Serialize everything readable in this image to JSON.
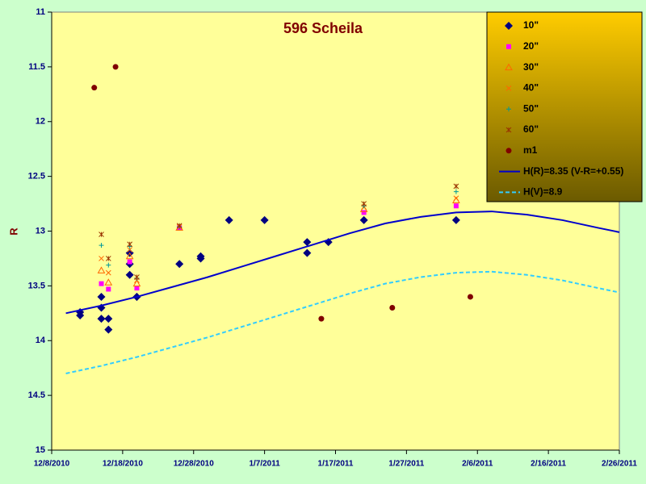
{
  "chart_data": {
    "type": "scatter",
    "title": "596 Scheila",
    "y_label": "R",
    "ylim": [
      11,
      15
    ],
    "y_reversed": true,
    "yticks": [
      11,
      11.5,
      12,
      12.5,
      13,
      13.5,
      14,
      14.5,
      15
    ],
    "xlim": [
      "12/8/2010",
      "2/26/2011"
    ],
    "xticks": [
      "12/8/2010",
      "12/18/2010",
      "12/28/2010",
      "1/7/2011",
      "1/17/2011",
      "1/27/2011",
      "2/6/2011",
      "2/16/2011",
      "2/26/2011"
    ],
    "legend": "top-right",
    "series": [
      {
        "name": "10\"",
        "color": "#000080",
        "marker": "diamond",
        "x": [
          "12/12/2010",
          "12/12/2010",
          "12/15/2010",
          "12/15/2010",
          "12/15/2010",
          "12/16/2010",
          "12/16/2010",
          "12/19/2010",
          "12/19/2010",
          "12/19/2010",
          "12/20/2010",
          "12/20/2010",
          "12/26/2010",
          "12/29/2010",
          "12/29/2010",
          "1/2/2011",
          "1/7/2011",
          "1/13/2011",
          "1/13/2011",
          "1/16/2011",
          "1/21/2011",
          "2/3/2011"
        ],
        "values": [
          13.74,
          13.77,
          13.6,
          13.7,
          13.8,
          13.8,
          13.9,
          13.2,
          13.3,
          13.4,
          13.6,
          13.6,
          13.3,
          13.23,
          13.25,
          12.9,
          12.9,
          13.1,
          13.2,
          13.1,
          12.9,
          12.9
        ]
      },
      {
        "name": "20\"",
        "color": "#ff00ff",
        "marker": "square",
        "x": [
          "12/15/2010",
          "12/16/2010",
          "12/19/2010",
          "12/20/2010",
          "12/26/2010",
          "1/21/2011",
          "2/3/2011"
        ],
        "values": [
          13.48,
          13.53,
          13.28,
          13.52,
          12.97,
          12.83,
          12.77
        ]
      },
      {
        "name": "30\"",
        "color": "#ff6600",
        "marker": "triangle",
        "x": [
          "12/15/2010",
          "12/16/2010",
          "12/19/2010",
          "12/20/2010",
          "12/26/2010",
          "1/21/2011",
          "2/3/2011"
        ],
        "values": [
          13.36,
          13.47,
          13.23,
          13.48,
          12.97,
          12.8,
          12.72
        ]
      },
      {
        "name": "40\"",
        "color": "#ff6600",
        "marker": "x",
        "x": [
          "12/15/2010",
          "12/16/2010",
          "12/19/2010",
          "12/20/2010",
          "12/26/2010",
          "1/21/2011",
          "2/3/2011"
        ],
        "values": [
          13.25,
          13.38,
          13.17,
          13.45,
          12.96,
          12.78,
          12.7
        ]
      },
      {
        "name": "50\"",
        "color": "#009999",
        "marker": "plus",
        "x": [
          "12/15/2010",
          "12/16/2010",
          "12/19/2010",
          "12/20/2010",
          "12/26/2010",
          "1/21/2011",
          "2/3/2011"
        ],
        "values": [
          13.13,
          13.31,
          13.14,
          13.43,
          12.96,
          12.77,
          12.64
        ]
      },
      {
        "name": "60\"",
        "color": "#993300",
        "marker": "star",
        "x": [
          "12/15/2010",
          "12/16/2010",
          "12/19/2010",
          "12/20/2010",
          "12/26/2010",
          "1/21/2011",
          "2/3/2011"
        ],
        "values": [
          13.03,
          13.25,
          13.12,
          13.42,
          12.95,
          12.75,
          12.59
        ]
      },
      {
        "name": "m1",
        "color": "#800000",
        "marker": "circle",
        "x": [
          "12/14/2010",
          "12/17/2010",
          "1/15/2011",
          "1/25/2011",
          "2/5/2011"
        ],
        "values": [
          11.69,
          11.5,
          13.8,
          13.7,
          13.6
        ]
      },
      {
        "name": "H(R)=8.35 (V-R=+0.55)",
        "color": "#0000cc",
        "line": "solid",
        "x": [
          "12/10/2010",
          "12/15/2010",
          "12/20/2010",
          "12/25/2010",
          "12/30/2010",
          "1/4/2011",
          "1/9/2011",
          "1/14/2011",
          "1/19/2011",
          "1/24/2011",
          "1/29/2011",
          "2/3/2011",
          "2/8/2011",
          "2/13/2011",
          "2/18/2011",
          "2/23/2011",
          "2/26/2011"
        ],
        "values": [
          13.75,
          13.68,
          13.6,
          13.51,
          13.42,
          13.32,
          13.22,
          13.12,
          13.02,
          12.93,
          12.87,
          12.83,
          12.82,
          12.85,
          12.9,
          12.97,
          13.01
        ]
      },
      {
        "name": "H(V)=8.9",
        "color": "#33ccff",
        "line": "dashed",
        "x": [
          "12/10/2010",
          "12/15/2010",
          "12/20/2010",
          "12/25/2010",
          "12/30/2010",
          "1/4/2011",
          "1/9/2011",
          "1/14/2011",
          "1/19/2011",
          "1/24/2011",
          "1/29/2011",
          "2/3/2011",
          "2/8/2011",
          "2/13/2011",
          "2/18/2011",
          "2/23/2011",
          "2/26/2011"
        ],
        "values": [
          14.3,
          14.23,
          14.15,
          14.06,
          13.97,
          13.87,
          13.77,
          13.67,
          13.57,
          13.48,
          13.42,
          13.38,
          13.37,
          13.4,
          13.45,
          13.52,
          13.56
        ]
      }
    ]
  }
}
